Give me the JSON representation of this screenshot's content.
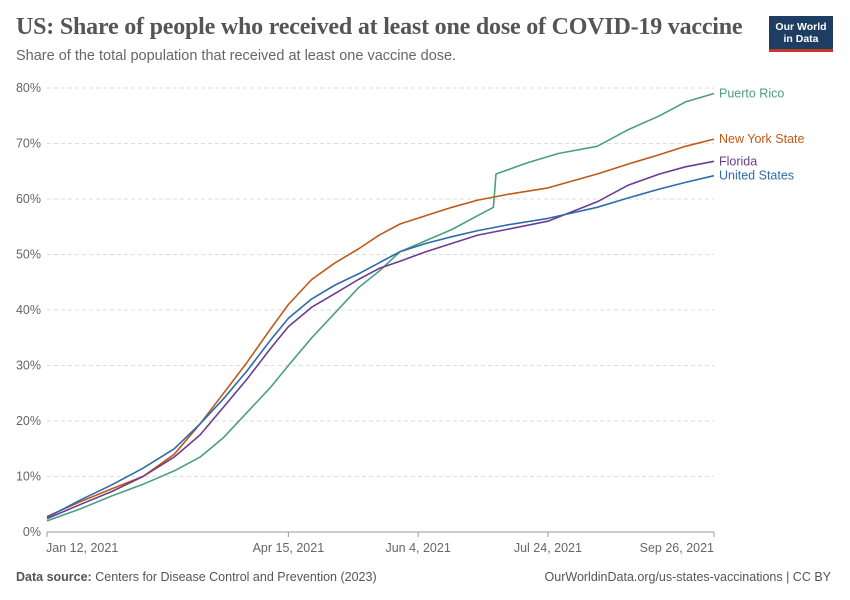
{
  "title": "US: Share of people who received at least one dose of COVID-19 vaccine",
  "subtitle": "Share of the total population that received at least one vaccine dose.",
  "logo": {
    "line1": "Our World",
    "line2": "in Data"
  },
  "footer": {
    "source_label": "Data source:",
    "source_text": "Centers for Disease Control and Prevention (2023)",
    "right": "OurWorldinData.org/us-states-vaccinations | CC BY"
  },
  "chart_data": {
    "type": "line",
    "title": "US: Share of people who received at least one dose of COVID-19 vaccine",
    "subtitle": "Share of the total population that received at least one vaccine dose.",
    "xlabel": "",
    "ylabel": "",
    "x_start": "2021-01-12",
    "x_end": "2021-09-26",
    "xlim": [
      "2021-01-12",
      "2021-09-26"
    ],
    "ylim": [
      0,
      80
    ],
    "grid": "horizontal-dashed",
    "legend": "line-end-labels",
    "x_ticks": [
      {
        "date": "2021-01-12",
        "label": "Jan 12, 2021"
      },
      {
        "date": "2021-04-15",
        "label": "Apr 15, 2021"
      },
      {
        "date": "2021-06-04",
        "label": "Jun 4, 2021"
      },
      {
        "date": "2021-07-24",
        "label": "Jul 24, 2021"
      },
      {
        "date": "2021-09-26",
        "label": "Sep 26, 2021"
      }
    ],
    "y_ticks": [
      {
        "value": 0,
        "label": "0%"
      },
      {
        "value": 10,
        "label": "10%"
      },
      {
        "value": 20,
        "label": "20%"
      },
      {
        "value": 30,
        "label": "30%"
      },
      {
        "value": 40,
        "label": "40%"
      },
      {
        "value": 50,
        "label": "50%"
      },
      {
        "value": 60,
        "label": "60%"
      },
      {
        "value": 70,
        "label": "70%"
      },
      {
        "value": 80,
        "label": "80%"
      }
    ],
    "series": [
      {
        "name": "Puerto Rico",
        "color": "#4c9e82",
        "points": [
          [
            "2021-01-12",
            2.0
          ],
          [
            "2021-01-25",
            4.2
          ],
          [
            "2021-02-06",
            6.5
          ],
          [
            "2021-02-18",
            8.6
          ],
          [
            "2021-03-02",
            11.0
          ],
          [
            "2021-03-12",
            13.5
          ],
          [
            "2021-03-21",
            17.0
          ],
          [
            "2021-03-30",
            21.5
          ],
          [
            "2021-04-08",
            26.0
          ],
          [
            "2021-04-15",
            30.0
          ],
          [
            "2021-04-24",
            35.0
          ],
          [
            "2021-05-03",
            39.5
          ],
          [
            "2021-05-12",
            44.0
          ],
          [
            "2021-05-20",
            47.0
          ],
          [
            "2021-05-28",
            50.5
          ],
          [
            "2021-06-07",
            52.5
          ],
          [
            "2021-06-17",
            54.5
          ],
          [
            "2021-06-27",
            57.0
          ],
          [
            "2021-07-03",
            58.5
          ],
          [
            "2021-07-04",
            64.5
          ],
          [
            "2021-07-16",
            66.5
          ],
          [
            "2021-07-28",
            68.2
          ],
          [
            "2021-08-12",
            69.5
          ],
          [
            "2021-08-24",
            72.5
          ],
          [
            "2021-09-05",
            75.0
          ],
          [
            "2021-09-15",
            77.5
          ],
          [
            "2021-09-26",
            79.0
          ]
        ]
      },
      {
        "name": "New York State",
        "color": "#c05917",
        "points": [
          [
            "2021-01-12",
            2.8
          ],
          [
            "2021-01-25",
            5.5
          ],
          [
            "2021-02-06",
            7.8
          ],
          [
            "2021-02-18",
            10.0
          ],
          [
            "2021-03-02",
            14.0
          ],
          [
            "2021-03-12",
            19.5
          ],
          [
            "2021-03-21",
            25.0
          ],
          [
            "2021-03-30",
            30.5
          ],
          [
            "2021-04-08",
            36.5
          ],
          [
            "2021-04-15",
            41.0
          ],
          [
            "2021-04-24",
            45.5
          ],
          [
            "2021-05-03",
            48.5
          ],
          [
            "2021-05-12",
            51.0
          ],
          [
            "2021-05-20",
            53.5
          ],
          [
            "2021-05-28",
            55.5
          ],
          [
            "2021-06-07",
            57.0
          ],
          [
            "2021-06-17",
            58.5
          ],
          [
            "2021-06-27",
            59.8
          ],
          [
            "2021-07-08",
            60.8
          ],
          [
            "2021-07-24",
            62.0
          ],
          [
            "2021-08-12",
            64.5
          ],
          [
            "2021-08-24",
            66.3
          ],
          [
            "2021-09-05",
            68.0
          ],
          [
            "2021-09-15",
            69.5
          ],
          [
            "2021-09-26",
            70.8
          ]
        ]
      },
      {
        "name": "Florida",
        "color": "#6b3d8f",
        "points": [
          [
            "2021-01-12",
            2.4
          ],
          [
            "2021-01-25",
            5.0
          ],
          [
            "2021-02-06",
            7.3
          ],
          [
            "2021-02-18",
            10.0
          ],
          [
            "2021-03-02",
            13.5
          ],
          [
            "2021-03-12",
            17.5
          ],
          [
            "2021-03-21",
            22.5
          ],
          [
            "2021-03-30",
            27.5
          ],
          [
            "2021-04-08",
            33.0
          ],
          [
            "2021-04-15",
            37.0
          ],
          [
            "2021-04-24",
            40.5
          ],
          [
            "2021-05-03",
            43.0
          ],
          [
            "2021-05-12",
            45.5
          ],
          [
            "2021-05-20",
            47.5
          ],
          [
            "2021-05-28",
            48.8
          ],
          [
            "2021-06-07",
            50.5
          ],
          [
            "2021-06-17",
            52.0
          ],
          [
            "2021-06-27",
            53.5
          ],
          [
            "2021-07-08",
            54.5
          ],
          [
            "2021-07-24",
            56.0
          ],
          [
            "2021-08-12",
            59.5
          ],
          [
            "2021-08-24",
            62.5
          ],
          [
            "2021-09-05",
            64.5
          ],
          [
            "2021-09-15",
            65.8
          ],
          [
            "2021-09-26",
            66.8
          ]
        ]
      },
      {
        "name": "United States",
        "color": "#2f6ba8",
        "points": [
          [
            "2021-01-12",
            2.6
          ],
          [
            "2021-01-25",
            5.8
          ],
          [
            "2021-02-06",
            8.5
          ],
          [
            "2021-02-18",
            11.5
          ],
          [
            "2021-03-02",
            15.0
          ],
          [
            "2021-03-12",
            19.5
          ],
          [
            "2021-03-21",
            24.0
          ],
          [
            "2021-03-30",
            29.0
          ],
          [
            "2021-04-08",
            34.5
          ],
          [
            "2021-04-15",
            38.5
          ],
          [
            "2021-04-24",
            42.0
          ],
          [
            "2021-05-03",
            44.5
          ],
          [
            "2021-05-12",
            46.5
          ],
          [
            "2021-05-20",
            48.5
          ],
          [
            "2021-05-28",
            50.5
          ],
          [
            "2021-06-07",
            52.0
          ],
          [
            "2021-06-17",
            53.2
          ],
          [
            "2021-06-27",
            54.3
          ],
          [
            "2021-07-08",
            55.3
          ],
          [
            "2021-07-24",
            56.5
          ],
          [
            "2021-08-12",
            58.5
          ],
          [
            "2021-08-24",
            60.2
          ],
          [
            "2021-09-05",
            61.8
          ],
          [
            "2021-09-15",
            63.0
          ],
          [
            "2021-09-26",
            64.2
          ]
        ]
      }
    ]
  }
}
